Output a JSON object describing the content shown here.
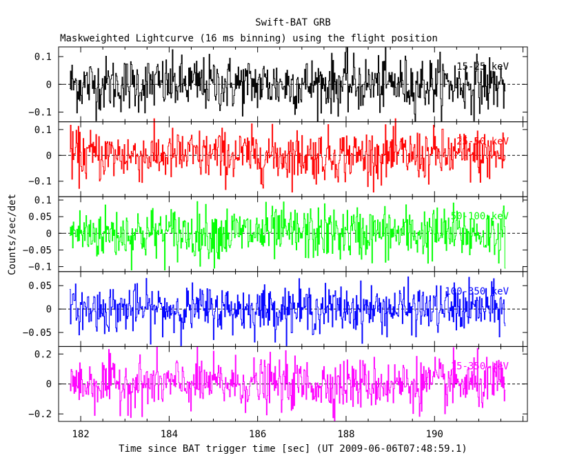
{
  "title": "Swift-BAT GRB",
  "subtitle": "Maskweighted Lightcurve (16 ms binning) using the flight position",
  "xlabel": "Time since BAT trigger time [sec] (UT 2009-06-06T07:48:59.1)",
  "ylabel": "Counts/sec/det",
  "chart_data": {
    "type": "line",
    "title": "Swift-BAT GRB",
    "subtitle": "Maskweighted Lightcurve (16 ms binning) using the flight position",
    "xlabel": "Time since BAT trigger time [sec] (UT 2009-06-06T07:48:59.1)",
    "ylabel": "Counts/sec/det",
    "xlim": [
      181.5,
      192.1
    ],
    "xticks": [
      182,
      184,
      186,
      188,
      190
    ],
    "xtick_labels": [
      "182",
      "184",
      "186",
      "188",
      "190"
    ],
    "x_start": 181.75,
    "x_end": 191.6,
    "bin_size": 0.016,
    "grid": false,
    "panels": [
      {
        "band": "15-25 keV",
        "color": "#000000",
        "ylim": [
          -0.135,
          0.135
        ],
        "yticks": [
          0.1,
          0,
          -0.1
        ],
        "ytick_labels": [
          "0.1",
          "0",
          "−0.1"
        ],
        "amplitude": 0.05
      },
      {
        "band": "25-50 keV",
        "color": "#ff0000",
        "ylim": [
          -0.16,
          0.13
        ],
        "yticks": [
          0.1,
          0,
          -0.1
        ],
        "ytick_labels": [
          "0.1",
          "0",
          "−0.1"
        ],
        "amplitude": 0.05
      },
      {
        "band": "50-100 keV",
        "color": "#00ff00",
        "ylim": [
          -0.115,
          0.11
        ],
        "yticks": [
          0.1,
          0.05,
          0,
          -0.05,
          -0.1
        ],
        "ytick_labels": [
          "0.1",
          "0.05",
          "0",
          "−0.05",
          "−0.1"
        ],
        "amplitude": 0.04
      },
      {
        "band": "100-350 keV",
        "color": "#0000ff",
        "ylim": [
          -0.08,
          0.08
        ],
        "yticks": [
          0.05,
          0,
          -0.05
        ],
        "ytick_labels": [
          "0.05",
          "0",
          "−0.05"
        ],
        "amplitude": 0.025
      },
      {
        "band": "15-350 keV",
        "color": "#ff00ff",
        "ylim": [
          -0.25,
          0.25
        ],
        "yticks": [
          0.2,
          0,
          -0.2
        ],
        "ytick_labels": [
          "0.2",
          "0",
          "−0.2"
        ],
        "amplitude": 0.085
      }
    ]
  }
}
